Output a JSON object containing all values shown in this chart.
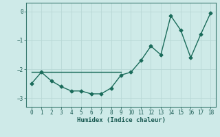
{
  "x_curve": [
    0,
    1,
    2,
    3,
    4,
    5,
    6,
    7,
    8,
    9,
    10,
    11,
    12,
    13,
    14,
    15,
    16,
    17,
    18
  ],
  "y_curve": [
    -2.5,
    -2.1,
    -2.4,
    -2.6,
    -2.75,
    -2.75,
    -2.85,
    -2.85,
    -2.65,
    -2.2,
    -2.1,
    -1.7,
    -1.2,
    -1.5,
    -0.15,
    -0.65,
    -1.6,
    -0.8,
    -0.05
  ],
  "x_hline": [
    0,
    9
  ],
  "y_hline": [
    -2.1,
    -2.1
  ],
  "line_color": "#1a6b5a",
  "bg_color": "#ceeae8",
  "grid_color": "#b8d8d5",
  "xlabel": "Humidex (Indice chaleur)",
  "ylim": [
    -3.3,
    0.3
  ],
  "xlim": [
    -0.5,
    18.5
  ],
  "yticks": [
    0,
    -1,
    -2,
    -3
  ],
  "xticks": [
    0,
    1,
    2,
    3,
    4,
    5,
    6,
    7,
    8,
    9,
    10,
    11,
    12,
    13,
    14,
    15,
    16,
    17,
    18
  ],
  "marker": "D",
  "markersize": 2.5,
  "linewidth": 1.0,
  "font_color": "#1a5a52",
  "tick_fontsize": 5.5,
  "xlabel_fontsize": 6.5
}
